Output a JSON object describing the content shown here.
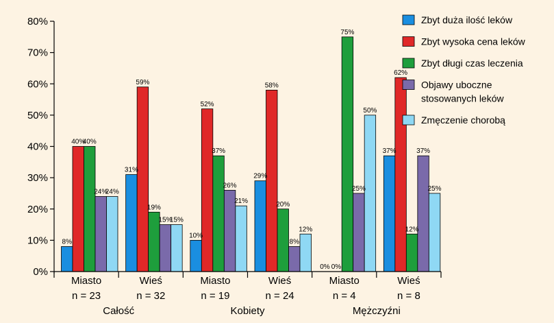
{
  "chart_data": {
    "type": "bar",
    "ylim": [
      0,
      80
    ],
    "yticks": [
      "0%",
      "10%",
      "20%",
      "30%",
      "40%",
      "50%",
      "60%",
      "70%",
      "80%"
    ],
    "subgroups": [
      {
        "label": "Miasto",
        "n": "n = 23"
      },
      {
        "label": "Wieś",
        "n": "n = 32"
      },
      {
        "label": "Miasto",
        "n": "n = 19"
      },
      {
        "label": "Wieś",
        "n": "n = 24"
      },
      {
        "label": "Miasto",
        "n": "n = 4"
      },
      {
        "label": "Wieś",
        "n": "n = 8"
      }
    ],
    "groups": [
      "Całość",
      "Kobiety",
      "Mężczyźni"
    ],
    "series": [
      {
        "name": "Zbyt duża ilość leków",
        "color": "#1a8ee0",
        "values": [
          8,
          31,
          10,
          29,
          0,
          37
        ],
        "labels": [
          "8%",
          "31%",
          "10%",
          "29%",
          "0%",
          "37%"
        ]
      },
      {
        "name": "Zbyt wysoka cena leków",
        "color": "#e02828",
        "values": [
          40,
          59,
          52,
          58,
          0,
          62
        ],
        "labels": [
          "40%",
          "59%",
          "52%",
          "58%",
          "0%",
          "62%"
        ]
      },
      {
        "name": "Zbyt długi czas leczenia",
        "color": "#1e9e3c",
        "values": [
          40,
          19,
          37,
          20,
          75,
          12
        ],
        "labels": [
          "40%",
          "19%",
          "37%",
          "20%",
          "75%",
          "12%"
        ]
      },
      {
        "name": "Objawy uboczne stosowanych leków",
        "name_lines": [
          "Objawy uboczne",
          "stosowanych leków"
        ],
        "color": "#7a6aaa",
        "values": [
          24,
          15,
          26,
          8,
          25,
          37
        ],
        "labels": [
          "24%",
          "15%",
          "26%",
          "8%",
          "25%",
          "37%"
        ]
      },
      {
        "name": "Zmęczenie chorobą",
        "color": "#8fd8f4",
        "values": [
          24,
          15,
          21,
          12,
          50,
          25
        ],
        "labels": [
          "24%",
          "15%",
          "21%",
          "12%",
          "50%",
          "25%"
        ]
      }
    ]
  }
}
